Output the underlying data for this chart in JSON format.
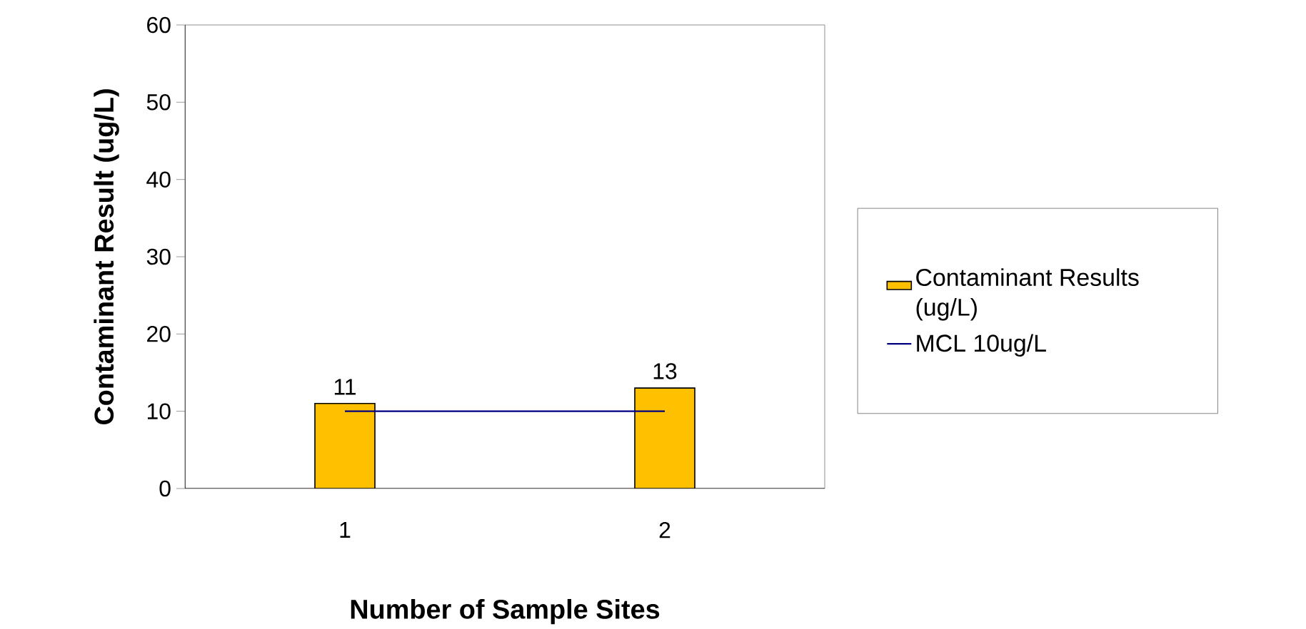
{
  "chart_data": {
    "type": "bar",
    "xlabel": "Number of Sample Sites",
    "ylabel": "Contaminant Result (ug/L)",
    "categories": [
      "1",
      "2"
    ],
    "series": [
      {
        "name": "Contaminant Results (ug/L)",
        "color": "#ffc000",
        "values": [
          11,
          13
        ],
        "value_labels": [
          "11",
          "13"
        ]
      },
      {
        "name": "MCL 10ug/L",
        "type": "line",
        "color": "#000080",
        "values": [
          10,
          10
        ]
      }
    ],
    "ylim": [
      0,
      60
    ],
    "yticks": [
      0,
      10,
      20,
      30,
      40,
      50,
      60
    ],
    "grid": false,
    "legend": "right"
  }
}
